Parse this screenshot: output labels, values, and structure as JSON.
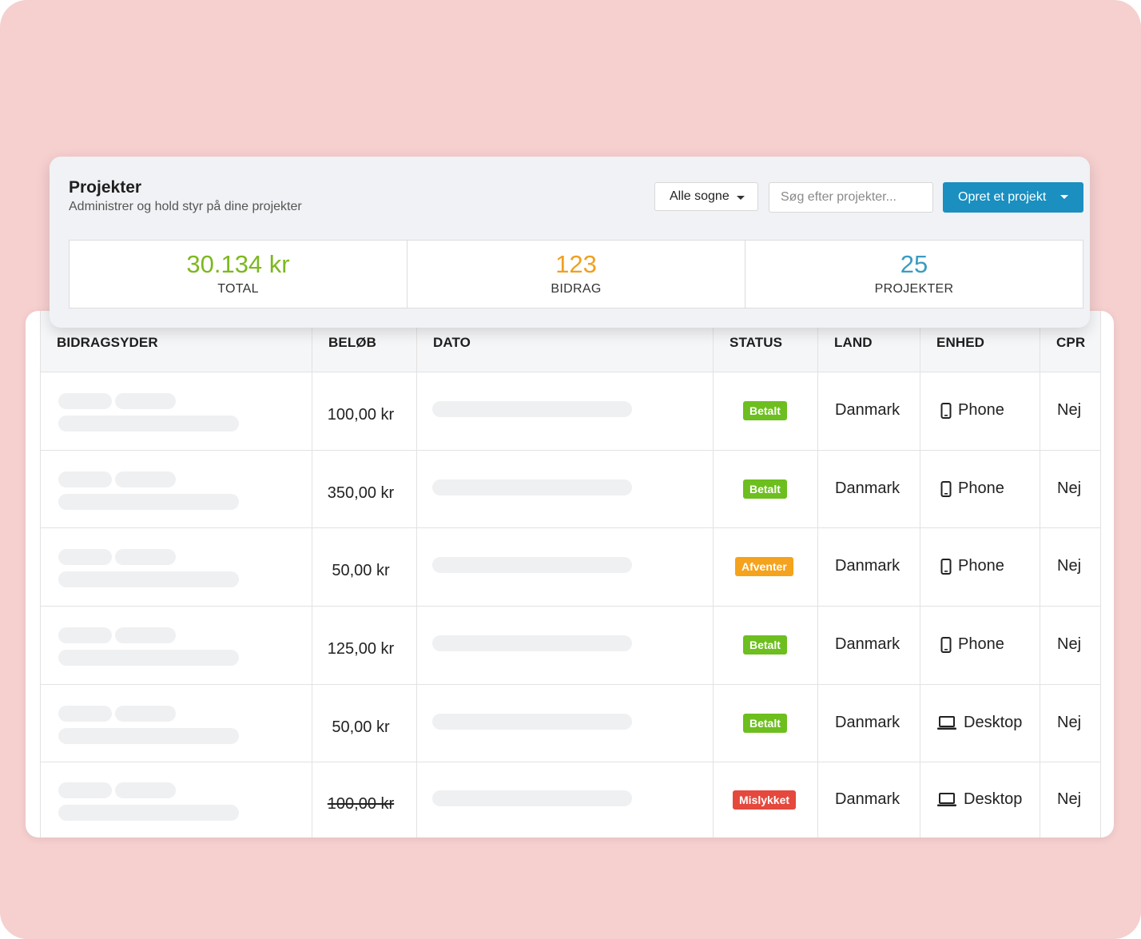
{
  "header": {
    "title": "Projekter",
    "subtitle": "Administrer og hold styr på dine projekter",
    "filter_label": "Alle sogne",
    "search_placeholder": "Søg efter projekter...",
    "create_label": "Opret et projekt"
  },
  "stats": [
    {
      "value": "30.134 kr",
      "label": "TOTAL",
      "color": "#7db81f"
    },
    {
      "value": "123",
      "label": "BIDRAG",
      "color": "#f0a020"
    },
    {
      "value": "25",
      "label": "PROJEKTER",
      "color": "#3a9cc2"
    }
  ],
  "table": {
    "columns": [
      "BIDRAGSYDER",
      "BELØB",
      "DATO",
      "STATUS",
      "LAND",
      "ENHED",
      "CPR"
    ],
    "rows": [
      {
        "amount": "100,00 kr",
        "status": "Betalt",
        "status_color": "#6dbe1f",
        "country": "Danmark",
        "device": "Phone",
        "device_icon": "phone-icon",
        "cpr": "Nej",
        "struck": false
      },
      {
        "amount": "350,00 kr",
        "status": "Betalt",
        "status_color": "#6dbe1f",
        "country": "Danmark",
        "device": "Phone",
        "device_icon": "phone-icon",
        "cpr": "Nej",
        "struck": false
      },
      {
        "amount": "50,00 kr",
        "status": "Afventer",
        "status_color": "#f5a21c",
        "country": "Danmark",
        "device": "Phone",
        "device_icon": "phone-icon",
        "cpr": "Nej",
        "struck": false
      },
      {
        "amount": "125,00 kr",
        "status": "Betalt",
        "status_color": "#6dbe1f",
        "country": "Danmark",
        "device": "Phone",
        "device_icon": "phone-icon",
        "cpr": "Nej",
        "struck": false
      },
      {
        "amount": "50,00 kr",
        "status": "Betalt",
        "status_color": "#6dbe1f",
        "country": "Danmark",
        "device": "Desktop",
        "device_icon": "laptop-icon",
        "cpr": "Nej",
        "struck": false
      },
      {
        "amount": "100,00 kr",
        "status": "Mislykket",
        "status_color": "#e5483d",
        "country": "Danmark",
        "device": "Desktop",
        "device_icon": "laptop-icon",
        "cpr": "Nej",
        "struck": true
      }
    ]
  },
  "colors": {
    "background": "#f6cfcf",
    "accent": "#1a8fc0"
  }
}
